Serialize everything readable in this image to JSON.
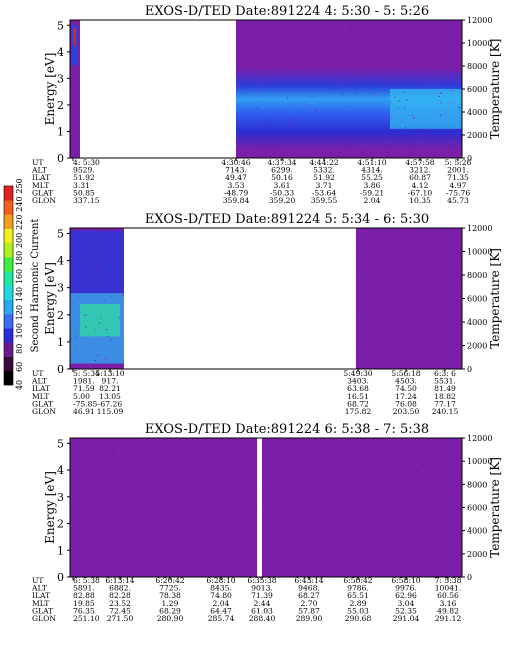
{
  "colors": {
    "background": "#7c1fa8",
    "colorbar": [
      "#000000",
      "#3a0a3a",
      "#6a1a8a",
      "#2b2bd8",
      "#3b6cf0",
      "#2ba8f0",
      "#22d8e0",
      "#20e6a0",
      "#40ee40",
      "#b0f020",
      "#f0f020",
      "#f0a020",
      "#f06020",
      "#e02020"
    ]
  },
  "colorbar": {
    "label": "Second Harmonic Current",
    "ticks": [
      "40",
      "60",
      "80",
      "100",
      "120",
      "140",
      "160",
      "180",
      "200",
      "220",
      "240",
      "250"
    ]
  },
  "panels": [
    {
      "title": "EXOS-D/TED   Date:891224  4: 5:30 - 5: 5:26",
      "ylabel": "Energy [eV]",
      "ylabel_right": "Temperature [K]",
      "yticks": [
        "0",
        "1",
        "2",
        "3",
        "4",
        "5"
      ],
      "yticks_right": [
        "0",
        "2000",
        "4000",
        "6000",
        "8000",
        "10000",
        "12000"
      ],
      "row_labels": [
        "UT",
        "ALT",
        "ILAT",
        "MLT",
        "GLAT",
        "GLON"
      ],
      "columns": [
        {
          "ut": "4: 5:30",
          "alt": "9529.",
          "ilat": "51.92",
          "mlt": "3.31",
          "glat": "50.85",
          "glon": "337.15"
        },
        {
          "ut": "4:30:46",
          "alt": "7143.",
          "ilat": "49.47",
          "mlt": "3.53",
          "glat": "-48.79",
          "glon": "359.84"
        },
        {
          "ut": "4:37:34",
          "alt": "6299.",
          "ilat": "50.16",
          "mlt": "3.61",
          "glat": "-50.33",
          "glon": "359.20"
        },
        {
          "ut": "4:44:22",
          "alt": "5332.",
          "ilat": "51.92",
          "mlt": "3.71",
          "glat": "-53.64",
          "glon": "359.55"
        },
        {
          "ut": "4:51:10",
          "alt": "4314.",
          "ilat": "55.25",
          "mlt": "3.86",
          "glat": "-59.21",
          "glon": "2.04"
        },
        {
          "ut": "4:57:58",
          "alt": "3212.",
          "ilat": "60.87",
          "mlt": "4.12",
          "glat": "-67.10",
          "glon": "10.35"
        },
        {
          "ut": "5: 5:26",
          "alt": "2001.",
          "ilat": "71.35",
          "mlt": "4.97",
          "glat": "-75.76",
          "glon": "45.73"
        }
      ]
    },
    {
      "title": "EXOS-D/TED   Date:891224  5: 5:34 - 6: 5:30",
      "ylabel": "Energy [eV]",
      "ylabel_right": "Temperature [K]",
      "yticks": [
        "0",
        "1",
        "2",
        "3",
        "4",
        "5"
      ],
      "yticks_right": [
        "0",
        "2000",
        "4000",
        "6000",
        "8000",
        "10000",
        "12000"
      ],
      "row_labels": [
        "UT",
        "ALT",
        "ILAT",
        "MLT",
        "GLAT",
        "GLON"
      ],
      "columns": [
        {
          "ut": "5: 5:34",
          "alt": "1981.",
          "ilat": "71.59",
          "mlt": "5.00",
          "glat": "-75.85",
          "glon": "46.91"
        },
        {
          "ut": "5:13:10",
          "alt": "917.",
          "ilat": "82.21",
          "mlt": "13.05",
          "glat": "-67.26",
          "glon": "115.09"
        },
        {
          "ut": "5:49:30",
          "alt": "3403.",
          "ilat": "63.68",
          "mlt": "16.51",
          "glat": "68.72",
          "glon": "175.82"
        },
        {
          "ut": "5:56:18",
          "alt": "4503.",
          "ilat": "74.50",
          "mlt": "17.24",
          "glat": "76.08",
          "glon": "203.50"
        },
        {
          "ut": "6:3: 6",
          "alt": "5531.",
          "ilat": "81.49",
          "mlt": "18.82",
          "glat": "77.17",
          "glon": "240.15"
        }
      ]
    },
    {
      "title": "EXOS-D/TED   Date:891224  6: 5:38 - 7: 5:38",
      "ylabel": "Energy [eV]",
      "ylabel_right": "Temperature [K]",
      "yticks": [
        "0",
        "1",
        "2",
        "3",
        "4",
        "5"
      ],
      "yticks_right": [
        "0",
        "2000",
        "4000",
        "6000",
        "8000",
        "10000",
        "12000"
      ],
      "row_labels": [
        "UT",
        "ALT",
        "ILAT",
        "MLT",
        "GLAT",
        "GLON"
      ],
      "columns": [
        {
          "ut": "6: 5:38",
          "alt": "5891.",
          "ilat": "82.88",
          "mlt": "19.85",
          "glat": "76.35",
          "glon": "251.10"
        },
        {
          "ut": "6:13:14",
          "alt": "6882.",
          "ilat": "82.28",
          "mlt": "23.52",
          "glat": "72.45",
          "glon": "271.50"
        },
        {
          "ut": "6:20:42",
          "alt": "7725.",
          "ilat": "78.38",
          "mlt": "1.29",
          "glat": "68.29",
          "glon": "280.90"
        },
        {
          "ut": "6:28:10",
          "alt": "8435.",
          "ilat": "74.80",
          "mlt": "2.04",
          "glat": "64.47",
          "glon": "285.74"
        },
        {
          "ut": "6:35:38",
          "alt": "9013.",
          "ilat": "71.39",
          "mlt": "2.44",
          "glat": "61.03",
          "glon": "288.40"
        },
        {
          "ut": "6:43:14",
          "alt": "9468.",
          "ilat": "68.27",
          "mlt": "2.70",
          "glat": "57.87",
          "glon": "289.90"
        },
        {
          "ut": "6:50:42",
          "alt": "9786.",
          "ilat": "65.51",
          "mlt": "2.89",
          "glat": "55.03",
          "glon": "290.68"
        },
        {
          "ut": "6:58:10",
          "alt": "9976.",
          "ilat": "62.96",
          "mlt": "3.04",
          "glat": "52.35",
          "glon": "291.04"
        },
        {
          "ut": "7: 5:38",
          "alt": "10041.",
          "ilat": "60.56",
          "mlt": "3.16",
          "glat": "49.82",
          "glon": "291.12"
        }
      ]
    }
  ],
  "chart_data": [
    {
      "type": "heatmap",
      "title": "EXOS-D/TED   Date:891224  4: 5:30 - 5: 5:26",
      "xlabel": "UT",
      "ylabel": "Energy [eV]",
      "ylabel_right": "Temperature [K]",
      "ylim": [
        0,
        5.2
      ],
      "ylim_right": [
        0,
        12000
      ],
      "x": [
        "4: 5:30",
        "4:30:46",
        "4:37:34",
        "4:44:22",
        "4:51:10",
        "4:57:58",
        "5: 5:26"
      ],
      "data_segments": [
        [
          "4: 5:30",
          "4: 5:58"
        ],
        [
          "4:30:46",
          "5: 5:26"
        ]
      ]
    },
    {
      "type": "heatmap",
      "title": "EXOS-D/TED   Date:891224  5: 5:34 - 6: 5:30",
      "xlabel": "UT",
      "ylabel": "Energy [eV]",
      "ylabel_right": "Temperature [K]",
      "ylim": [
        0,
        5.2
      ],
      "ylim_right": [
        0,
        12000
      ],
      "x": [
        "5: 5:34",
        "5:13:10",
        "5:49:30",
        "5:56:18",
        "6:3: 6"
      ],
      "data_segments": [
        [
          "5: 5:34",
          "5:13:10"
        ],
        [
          "5:49:30",
          "6:3: 6"
        ]
      ]
    },
    {
      "type": "heatmap",
      "title": "EXOS-D/TED   Date:891224  6: 5:38 - 7: 5:38",
      "xlabel": "UT",
      "ylabel": "Energy [eV]",
      "ylabel_right": "Temperature [K]",
      "ylim": [
        0,
        5.2
      ],
      "ylim_right": [
        0,
        12000
      ],
      "x": [
        "6: 5:38",
        "6:13:14",
        "6:20:42",
        "6:28:10",
        "6:35:38",
        "6:43:14",
        "6:50:42",
        "6:58:10",
        "7: 5:38"
      ],
      "data_segments": [
        [
          "6: 5:38",
          "6:35:00"
        ],
        [
          "6:36:20",
          "7: 5:38"
        ]
      ]
    }
  ]
}
